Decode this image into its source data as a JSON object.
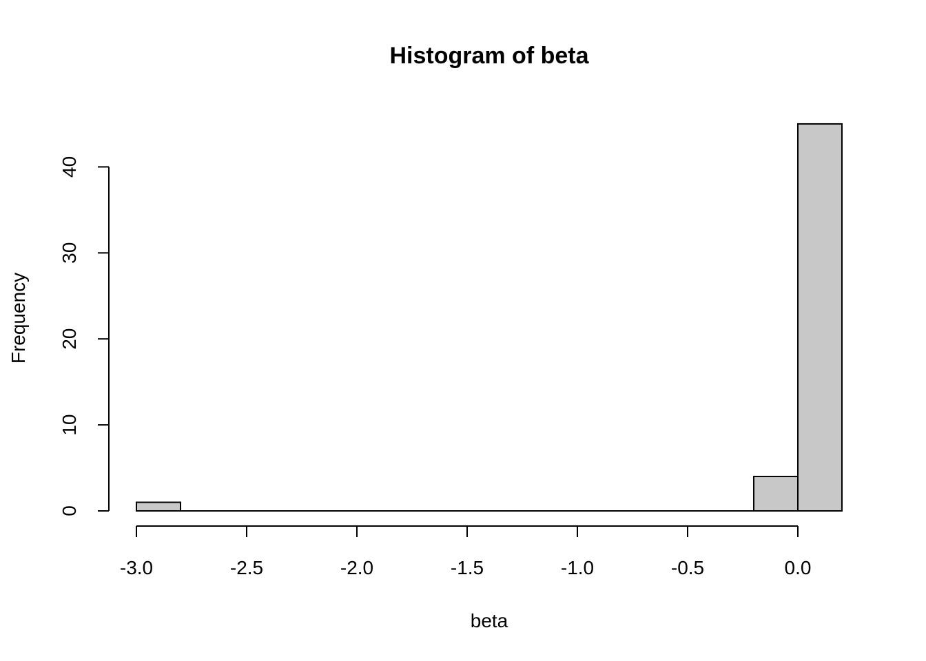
{
  "chart_data": {
    "type": "bar",
    "histogram": true,
    "title": "Histogram of beta",
    "xlabel": "beta",
    "ylabel": "Frequency",
    "bin_edges": [
      -3.0,
      -2.8,
      -2.6,
      -2.4,
      -2.2,
      -2.0,
      -1.8,
      -1.6,
      -1.4,
      -1.2,
      -1.0,
      -0.8,
      -0.6,
      -0.4,
      -0.2,
      0.0,
      0.2
    ],
    "values": [
      1,
      0,
      0,
      0,
      0,
      0,
      0,
      0,
      0,
      0,
      0,
      0,
      0,
      0,
      4,
      45
    ],
    "xlim": [
      -3.0,
      0.2
    ],
    "ylim": [
      0,
      45
    ],
    "x_ticks": [
      -3.0,
      -2.5,
      -2.0,
      -1.5,
      -1.0,
      -0.5,
      0.0
    ],
    "x_tick_labels": [
      "-3.0",
      "-2.5",
      "-2.0",
      "-1.5",
      "-1.0",
      "-0.5",
      "0.0"
    ],
    "y_ticks": [
      0,
      10,
      20,
      30,
      40
    ],
    "y_tick_labels": [
      "0",
      "10",
      "20",
      "30",
      "40"
    ],
    "bar_fill": "#c8c8c8",
    "bar_stroke": "#000000",
    "grid": false,
    "legend": "none"
  }
}
